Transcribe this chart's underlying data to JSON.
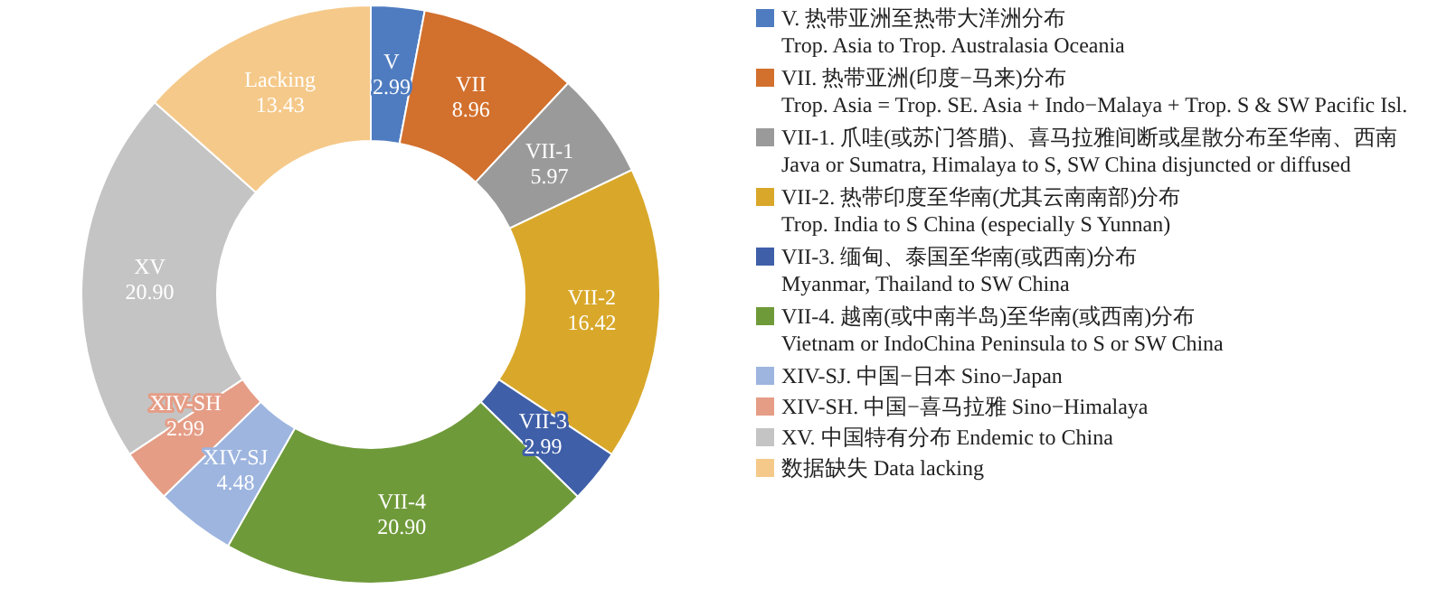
{
  "chart_data": {
    "type": "donut",
    "legend": "right",
    "data_labels": true,
    "categories": [
      "V. 热带亚洲至热带大洋洲分布\nTrop. Asia to Trop. Australasia Oceania",
      "VII. 热带亚洲(印度−马来)分布\nTrop. Asia = Trop. SE. Asia + Indo−Malaya + Trop. S & SW Pacific Isl.",
      "VII-1. 爪哇(或苏门答腊)、喜马拉雅间断或星散分布至华南、西南\nJava or Sumatra, Himalaya to S, SW China disjuncted or diffused",
      "VII-2. 热带印度至华南(尤其云南南部)分布\nTrop. India to S China (especially S Yunnan)",
      "VII-3. 缅甸、泰国至华南(或西南)分布\nMyanmar, Thailand to SW China",
      "VII-4. 越南(或中南半岛)至华南(或西南)分布\nVietnam or IndoChina Peninsula to S or SW China",
      "XIV-SJ. 中国−日本 Sino−Japan",
      "XIV-SH. 中国−喜马拉雅 Sino−Himalaya",
      "XV. 中国特有分布 Endemic to China",
      "数据缺失 Data lacking"
    ],
    "values": [
      2.99,
      8.96,
      5.97,
      16.42,
      2.99,
      20.9,
      4.48,
      2.99,
      20.9,
      13.43
    ],
    "value_labels": [
      "V\n2.99",
      "VII\n8.96",
      "VII-1\n5.97",
      "VII-2\n16.42",
      "VII-3\n2.99",
      "VII-4\n20.90",
      "XIV-SJ\n4.48",
      "XIV-SH\n2.99",
      "XV\n20.90",
      "Lacking\n13.43"
    ],
    "colors": [
      "#4f7cc0",
      "#d2702d",
      "#9a9a9a",
      "#d9a82a",
      "#3f5fa8",
      "#6f9a3a",
      "#9db5df",
      "#e59d86",
      "#c4c4c4",
      "#f5c98a"
    ]
  }
}
